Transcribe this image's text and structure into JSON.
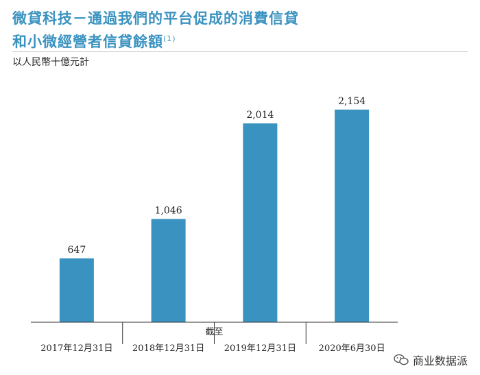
{
  "header": {
    "title_line1": "微貸科技－通過我們的平台促成的消費信貸",
    "title_line2": "和小微經營者信貸餘額",
    "title_note": "(1)",
    "unit": "以人民幣十億元計"
  },
  "watermark": {
    "text": "商业数据派",
    "icon": "wechat-icon"
  },
  "colors": {
    "bar": "#3a92c0",
    "title": "#3a92c0",
    "axis": "#333333"
  },
  "chart_data": {
    "type": "bar",
    "title": "微貸科技－通過我們的平台促成的消費信貸和小微經營者信貸餘額",
    "ylabel": "以人民幣十億元計",
    "xlabel": "截至",
    "categories": [
      "2017年12月31日",
      "2018年12月31日",
      "2019年12月31日",
      "2020年6月30日"
    ],
    "values": [
      647,
      1046,
      2014,
      2154
    ],
    "value_labels": [
      "647",
      "1,046",
      "2,014",
      "2,154"
    ],
    "ylim": [
      0,
      2500
    ],
    "grid": false,
    "legend": "none"
  }
}
